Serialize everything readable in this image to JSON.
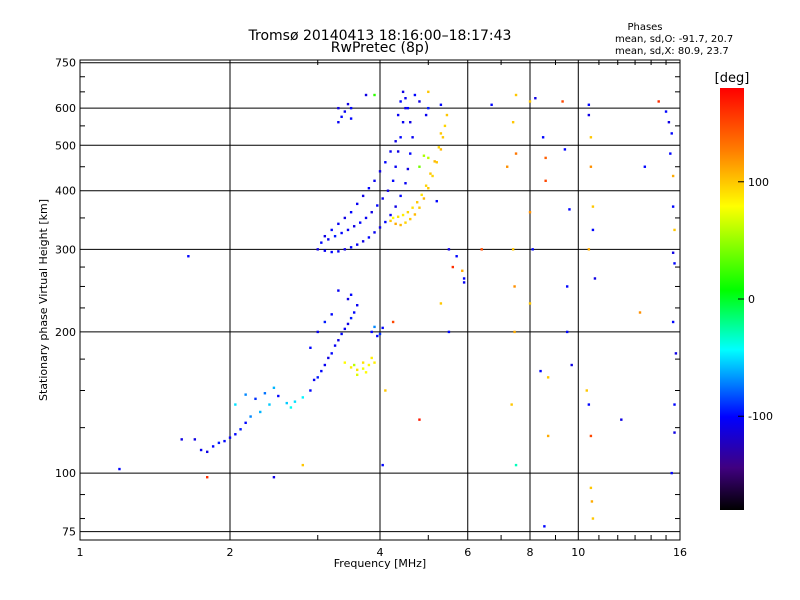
{
  "chart_data": {
    "type": "scatter",
    "title": "Tromsø 20140413 18:16:00–18:17:43",
    "subtitle": "RwPretec (8p)",
    "xlabel": "Frequency [MHz]",
    "ylabel": "Stationary phase Virtual Height [km]",
    "x_scale": "log",
    "y_scale": "log",
    "xlim": [
      1,
      16
    ],
    "ylim": [
      72,
      760
    ],
    "x_ticks": [
      1,
      2,
      4,
      6,
      8,
      10,
      16
    ],
    "y_ticks": [
      75,
      100,
      200,
      300,
      400,
      500,
      600,
      750
    ],
    "grid": true,
    "phase_box": {
      "heading": "Phases",
      "line1": "mean, sd,O: -91.7, 20.7",
      "line2": "mean, sd,X:  80.9, 23.7"
    },
    "colorbar": {
      "label": "[deg]",
      "range": [
        -180,
        180
      ],
      "ticks": [
        100,
        0,
        -100
      ],
      "colors": [
        "#ff0000",
        "#ffa500",
        "#ffff00",
        "#00ff00",
        "#00ffff",
        "#0000ff",
        "#000000"
      ]
    },
    "series": [
      {
        "points": [
          [
            1.7,
            118,
            -110
          ],
          [
            1.75,
            112,
            -105
          ],
          [
            1.8,
            111,
            -110
          ],
          [
            1.85,
            114,
            -100
          ],
          [
            1.9,
            116,
            -95
          ],
          [
            1.95,
            117,
            -100
          ],
          [
            2.0,
            119,
            -105
          ],
          [
            2.05,
            121,
            -100
          ],
          [
            2.1,
            124,
            -95
          ],
          [
            2.15,
            128,
            -100
          ],
          [
            2.05,
            140,
            -50
          ],
          [
            2.15,
            147,
            -70
          ],
          [
            2.25,
            144,
            -90
          ],
          [
            2.35,
            148,
            -75
          ],
          [
            2.45,
            152,
            -60
          ],
          [
            2.5,
            146,
            -100
          ],
          [
            2.6,
            141,
            -55
          ],
          [
            2.65,
            138,
            -40
          ],
          [
            2.7,
            142,
            -50
          ],
          [
            2.8,
            145,
            -45
          ],
          [
            2.3,
            135,
            -60
          ],
          [
            2.4,
            140,
            -55
          ],
          [
            2.2,
            132,
            -70
          ],
          [
            2.9,
            150,
            -100
          ],
          [
            2.95,
            158,
            -105
          ],
          [
            3.0,
            160,
            -95
          ],
          [
            3.05,
            165,
            -100
          ],
          [
            3.1,
            170,
            -105
          ],
          [
            3.15,
            176,
            -110
          ],
          [
            3.2,
            180,
            -100
          ],
          [
            3.25,
            187,
            -105
          ],
          [
            3.3,
            192,
            -110
          ],
          [
            3.35,
            198,
            -100
          ],
          [
            3.4,
            203,
            -105
          ],
          [
            3.45,
            208,
            -110
          ],
          [
            3.5,
            214,
            -95
          ],
          [
            3.55,
            220,
            -100
          ],
          [
            3.6,
            228,
            -105
          ],
          [
            3.45,
            235,
            -110
          ],
          [
            3.5,
            240,
            -100
          ],
          [
            3.3,
            245,
            -105
          ],
          [
            3.2,
            218,
            -100
          ],
          [
            3.1,
            210,
            -95
          ],
          [
            3.0,
            200,
            -105
          ],
          [
            2.9,
            185,
            -100
          ],
          [
            3.4,
            172,
            80
          ],
          [
            3.5,
            168,
            85
          ],
          [
            3.6,
            166,
            90
          ],
          [
            3.7,
            167,
            75
          ],
          [
            3.8,
            170,
            80
          ],
          [
            3.9,
            172,
            85
          ],
          [
            3.6,
            162,
            70
          ],
          [
            3.75,
            164,
            80
          ],
          [
            3.55,
            170,
            60
          ],
          [
            3.85,
            176,
            85
          ],
          [
            3.7,
            172,
            90
          ],
          [
            3.95,
            196,
            -100
          ],
          [
            4.0,
            198,
            -90
          ],
          [
            4.05,
            204,
            -100
          ],
          [
            3.9,
            205,
            -70
          ],
          [
            3.85,
            200,
            -100
          ],
          [
            3.0,
            300,
            -110
          ],
          [
            3.1,
            298,
            -105
          ],
          [
            3.2,
            296,
            -100
          ],
          [
            3.3,
            297,
            -105
          ],
          [
            3.4,
            300,
            -110
          ],
          [
            3.5,
            303,
            -100
          ],
          [
            3.6,
            307,
            -105
          ],
          [
            3.7,
            312,
            -110
          ],
          [
            3.8,
            318,
            -100
          ],
          [
            3.9,
            326,
            -105
          ],
          [
            4.0,
            334,
            -110
          ],
          [
            4.1,
            343,
            -100
          ],
          [
            4.2,
            355,
            -105
          ],
          [
            4.3,
            370,
            -110
          ],
          [
            4.4,
            390,
            -100
          ],
          [
            4.5,
            415,
            -105
          ],
          [
            4.55,
            445,
            -110
          ],
          [
            4.6,
            480,
            -100
          ],
          [
            4.65,
            520,
            -105
          ],
          [
            4.6,
            560,
            -110
          ],
          [
            4.55,
            600,
            -100
          ],
          [
            4.5,
            630,
            -105
          ],
          [
            4.45,
            650,
            -110
          ],
          [
            4.4,
            620,
            -100
          ],
          [
            4.35,
            580,
            -105
          ],
          [
            3.05,
            310,
            -100
          ],
          [
            3.15,
            315,
            -105
          ],
          [
            3.25,
            320,
            -95
          ],
          [
            3.35,
            325,
            -100
          ],
          [
            3.45,
            330,
            -105
          ],
          [
            3.55,
            336,
            -110
          ],
          [
            3.65,
            342,
            -100
          ],
          [
            3.75,
            350,
            -105
          ],
          [
            3.85,
            360,
            -110
          ],
          [
            3.95,
            372,
            -100
          ],
          [
            4.05,
            385,
            -105
          ],
          [
            4.15,
            400,
            -110
          ],
          [
            4.25,
            420,
            -100
          ],
          [
            4.3,
            450,
            -105
          ],
          [
            4.35,
            485,
            -110
          ],
          [
            4.4,
            520,
            -100
          ],
          [
            4.45,
            560,
            -105
          ],
          [
            4.5,
            600,
            -110
          ],
          [
            3.1,
            320,
            -110
          ],
          [
            3.2,
            330,
            -100
          ],
          [
            3.3,
            340,
            -105
          ],
          [
            3.4,
            350,
            -110
          ],
          [
            3.5,
            360,
            -100
          ],
          [
            3.6,
            375,
            -105
          ],
          [
            3.7,
            390,
            -110
          ],
          [
            3.8,
            405,
            -100
          ],
          [
            3.9,
            420,
            -105
          ],
          [
            4.0,
            440,
            -110
          ],
          [
            4.1,
            460,
            -100
          ],
          [
            4.2,
            485,
            -105
          ],
          [
            4.3,
            510,
            -110
          ],
          [
            3.3,
            600,
            -110
          ],
          [
            3.4,
            590,
            -105
          ],
          [
            3.35,
            575,
            -100
          ],
          [
            3.45,
            612,
            -110
          ],
          [
            3.3,
            560,
            -105
          ],
          [
            3.5,
            570,
            -100
          ],
          [
            4.2,
            345,
            100
          ],
          [
            4.3,
            340,
            110
          ],
          [
            4.4,
            338,
            105
          ],
          [
            4.5,
            342,
            95
          ],
          [
            4.6,
            348,
            100
          ],
          [
            4.7,
            356,
            105
          ],
          [
            4.8,
            368,
            100
          ],
          [
            4.9,
            385,
            105
          ],
          [
            5.0,
            405,
            100
          ],
          [
            5.1,
            430,
            95
          ],
          [
            5.2,
            460,
            100
          ],
          [
            5.3,
            490,
            105
          ],
          [
            5.35,
            520,
            100
          ],
          [
            5.4,
            550,
            95
          ],
          [
            5.45,
            580,
            100
          ],
          [
            4.25,
            350,
            80
          ],
          [
            4.35,
            352,
            90
          ],
          [
            4.45,
            355,
            85
          ],
          [
            4.55,
            360,
            95
          ],
          [
            4.65,
            368,
            90
          ],
          [
            4.75,
            378,
            100
          ],
          [
            4.85,
            392,
            90
          ],
          [
            4.95,
            410,
            95
          ],
          [
            5.05,
            435,
            100
          ],
          [
            5.15,
            462,
            105
          ],
          [
            5.25,
            495,
            95
          ],
          [
            5.3,
            530,
            100
          ],
          [
            5.0,
            470,
            60
          ],
          [
            4.8,
            450,
            40
          ],
          [
            4.9,
            475,
            55
          ],
          [
            5.3,
            610,
            -100
          ],
          [
            5.0,
            600,
            -95
          ],
          [
            4.7,
            640,
            -100
          ],
          [
            4.8,
            620,
            -110
          ],
          [
            4.95,
            580,
            -105
          ],
          [
            5.2,
            380,
            -100
          ],
          [
            5.5,
            300,
            -110
          ],
          [
            5.7,
            290,
            -100
          ],
          [
            5.9,
            255,
            -105
          ],
          [
            5.3,
            230,
            100
          ],
          [
            6.7,
            610,
            -100
          ],
          [
            7.2,
            450,
            120
          ],
          [
            7.4,
            560,
            100
          ],
          [
            7.4,
            300,
            100
          ],
          [
            7.45,
            200,
            110
          ],
          [
            7.5,
            104,
            -30
          ],
          [
            7.5,
            480,
            130
          ],
          [
            7.35,
            140,
            100
          ],
          [
            7.45,
            250,
            120
          ],
          [
            7.5,
            640,
            100
          ],
          [
            8.0,
            620,
            100
          ],
          [
            8.0,
            360,
            120
          ],
          [
            8.0,
            230,
            100
          ],
          [
            8.1,
            300,
            -100
          ],
          [
            8.2,
            630,
            -110
          ],
          [
            8.5,
            520,
            -100
          ],
          [
            8.6,
            470,
            140
          ],
          [
            8.6,
            420,
            150
          ],
          [
            8.7,
            160,
            100
          ],
          [
            8.7,
            120,
            110
          ],
          [
            8.4,
            165,
            -100
          ],
          [
            8.55,
            77,
            -100
          ],
          [
            9.3,
            620,
            150
          ],
          [
            9.4,
            490,
            -100
          ],
          [
            9.5,
            200,
            -100
          ],
          [
            9.5,
            250,
            -100
          ],
          [
            9.6,
            365,
            -100
          ],
          [
            9.7,
            170,
            -110
          ],
          [
            10.5,
            610,
            -100
          ],
          [
            10.5,
            580,
            -110
          ],
          [
            10.6,
            520,
            100
          ],
          [
            10.6,
            450,
            120
          ],
          [
            10.7,
            370,
            100
          ],
          [
            10.7,
            330,
            -100
          ],
          [
            10.8,
            260,
            -110
          ],
          [
            10.5,
            300,
            110
          ],
          [
            10.4,
            150,
            100
          ],
          [
            10.5,
            140,
            -100
          ],
          [
            10.6,
            120,
            150
          ],
          [
            10.6,
            93,
            100
          ],
          [
            10.65,
            87,
            110
          ],
          [
            10.7,
            80,
            100
          ],
          [
            12.2,
            130,
            -110
          ],
          [
            13.6,
            450,
            -100
          ],
          [
            13.3,
            220,
            120
          ],
          [
            14.5,
            620,
            160
          ],
          [
            15.0,
            590,
            -100
          ],
          [
            15.2,
            560,
            -110
          ],
          [
            15.4,
            530,
            -100
          ],
          [
            15.3,
            480,
            -100
          ],
          [
            15.5,
            430,
            110
          ],
          [
            15.5,
            370,
            -100
          ],
          [
            15.6,
            330,
            100
          ],
          [
            15.5,
            295,
            -110
          ],
          [
            15.6,
            280,
            -100
          ],
          [
            15.5,
            210,
            -100
          ],
          [
            15.7,
            180,
            -110
          ],
          [
            15.6,
            140,
            -100
          ],
          [
            15.6,
            122,
            -110
          ],
          [
            15.4,
            100,
            -100
          ],
          [
            1.2,
            102,
            -100
          ],
          [
            1.6,
            118,
            -110
          ],
          [
            1.65,
            290,
            -100
          ],
          [
            1.8,
            98,
            160
          ],
          [
            2.45,
            98,
            -110
          ],
          [
            2.8,
            104,
            100
          ],
          [
            3.5,
            600,
            -100
          ],
          [
            3.75,
            640,
            -110
          ],
          [
            3.9,
            640,
            20
          ],
          [
            4.05,
            104,
            -100
          ],
          [
            4.1,
            150,
            100
          ],
          [
            4.25,
            210,
            150
          ],
          [
            5.0,
            650,
            100
          ],
          [
            5.5,
            200,
            -100
          ],
          [
            5.6,
            275,
            160
          ],
          [
            5.85,
            270,
            110
          ],
          [
            6.4,
            300,
            150
          ],
          [
            4.8,
            130,
            170
          ],
          [
            5.9,
            260,
            -100
          ]
        ]
      }
    ]
  }
}
